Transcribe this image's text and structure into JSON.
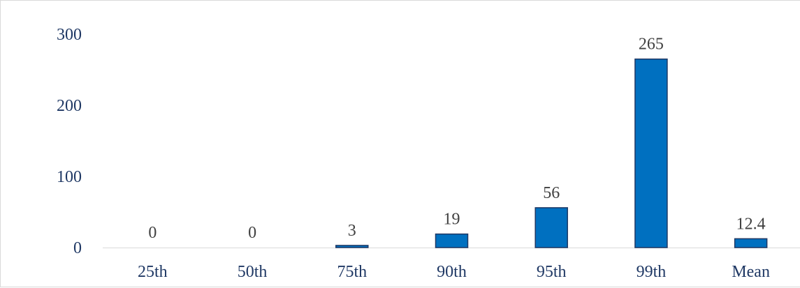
{
  "chart_data": {
    "type": "bar",
    "categories": [
      "25th",
      "50th",
      "75th",
      "90th",
      "95th",
      "99th",
      "Mean"
    ],
    "values": [
      0,
      0,
      3,
      19,
      56,
      265,
      12.4
    ],
    "data_labels": [
      "0",
      "0",
      "3",
      "19",
      "56",
      "265",
      "12.4"
    ],
    "yticks": [
      0,
      100,
      200,
      300
    ],
    "ylim": [
      0,
      300
    ],
    "grid": false,
    "legend": "none",
    "colors": {
      "bar": "#0070c0",
      "bar_border": "#1f3864",
      "axis_text": "#1f3864",
      "data_label": "#404040",
      "baseline": "#d9d9d9"
    }
  }
}
